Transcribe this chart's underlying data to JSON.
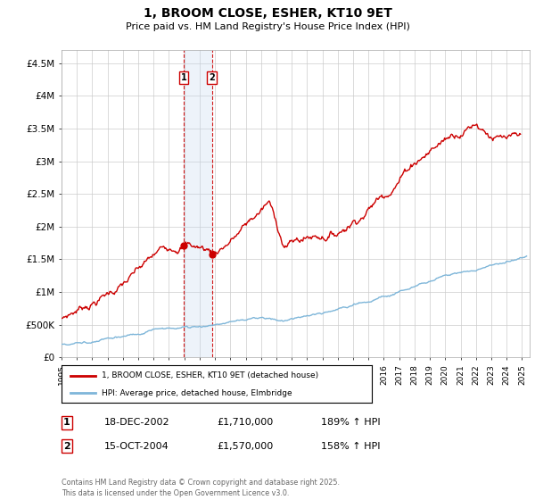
{
  "title": "1, BROOM CLOSE, ESHER, KT10 9ET",
  "subtitle": "Price paid vs. HM Land Registry's House Price Index (HPI)",
  "ylabel_ticks": [
    "£0",
    "£500K",
    "£1M",
    "£1.5M",
    "£2M",
    "£2.5M",
    "£3M",
    "£3.5M",
    "£4M",
    "£4.5M"
  ],
  "ytick_values": [
    0,
    500000,
    1000000,
    1500000,
    2000000,
    2500000,
    3000000,
    3500000,
    4000000,
    4500000
  ],
  "ylim": [
    0,
    4700000
  ],
  "xlim_start": 1995.0,
  "xlim_end": 2025.5,
  "sale1_x": 2002.96,
  "sale1_y": 1710000,
  "sale1_label": "1",
  "sale1_date": "18-DEC-2002",
  "sale1_price": "£1,710,000",
  "sale1_hpi": "189% ↑ HPI",
  "sale2_x": 2004.79,
  "sale2_y": 1570000,
  "sale2_label": "2",
  "sale2_date": "15-OCT-2004",
  "sale2_price": "£1,570,000",
  "sale2_hpi": "158% ↑ HPI",
  "legend_line1": "1, BROOM CLOSE, ESHER, KT10 9ET (detached house)",
  "legend_line2": "HPI: Average price, detached house, Elmbridge",
  "footer": "Contains HM Land Registry data © Crown copyright and database right 2025.\nThis data is licensed under the Open Government Licence v3.0.",
  "hpi_color": "#7eb6d9",
  "price_color": "#cc0000",
  "sale_marker_color": "#cc0000",
  "vline_color": "#cc0000",
  "vbox_color": "#c5d9f1",
  "background_color": "#ffffff",
  "grid_color": "#cccccc"
}
